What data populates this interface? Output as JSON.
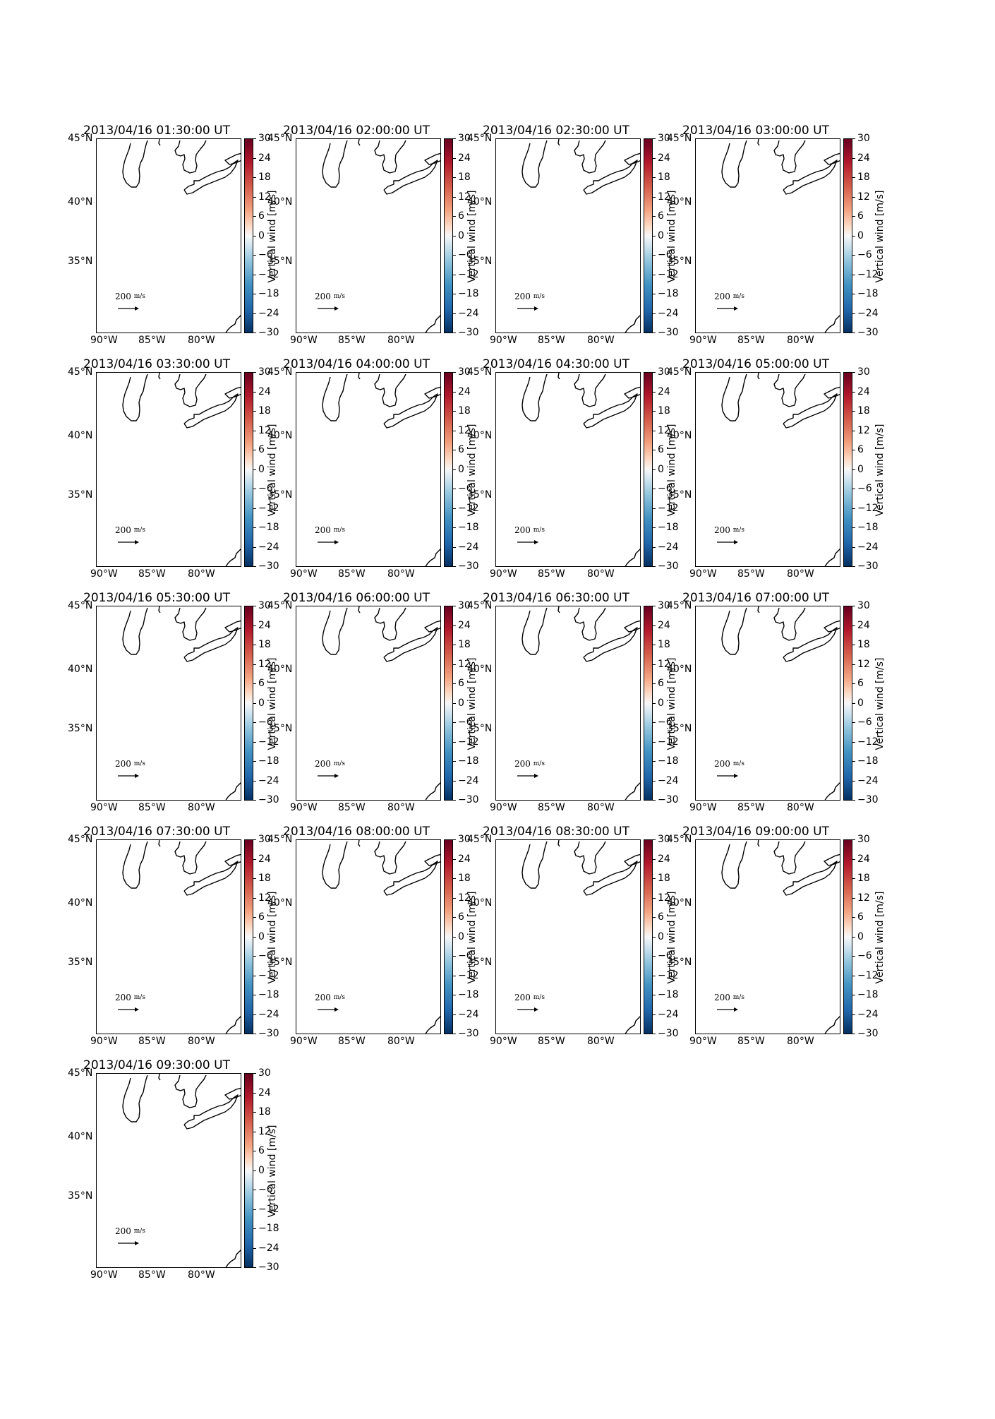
{
  "colorbar": {
    "label": "Vertical wind [m/s]",
    "ticks": [
      "30",
      "24",
      "18",
      "12",
      "6",
      "0",
      "−6",
      "−12",
      "−18",
      "−24",
      "−30"
    ],
    "range": [
      -30,
      30
    ],
    "colormap": "RdBu_r",
    "color_min": "#053061",
    "color_mid": "#f7f7f7",
    "color_max": "#67001f"
  },
  "axes": {
    "lat_labels": [
      "45°N",
      "40°N",
      "35°N"
    ],
    "lon_labels": [
      "90°W",
      "85°W",
      "80°W"
    ]
  },
  "reference_vector": {
    "value": "200",
    "unit_numerator": "m",
    "unit_denominator": "s"
  },
  "panels": [
    {
      "title": "2013/04/16 01:30:00 UT"
    },
    {
      "title": "2013/04/16 02:00:00 UT"
    },
    {
      "title": "2013/04/16 02:30:00 UT"
    },
    {
      "title": "2013/04/16 03:00:00 UT"
    },
    {
      "title": "2013/04/16 03:30:00 UT"
    },
    {
      "title": "2013/04/16 04:00:00 UT"
    },
    {
      "title": "2013/04/16 04:30:00 UT"
    },
    {
      "title": "2013/04/16 05:00:00 UT"
    },
    {
      "title": "2013/04/16 05:30:00 UT"
    },
    {
      "title": "2013/04/16 06:00:00 UT"
    },
    {
      "title": "2013/04/16 06:30:00 UT"
    },
    {
      "title": "2013/04/16 07:00:00 UT"
    },
    {
      "title": "2013/04/16 07:30:00 UT"
    },
    {
      "title": "2013/04/16 08:00:00 UT"
    },
    {
      "title": "2013/04/16 08:30:00 UT"
    },
    {
      "title": "2013/04/16 09:00:00 UT"
    },
    {
      "title": "2013/04/16 09:30:00 UT"
    }
  ]
}
